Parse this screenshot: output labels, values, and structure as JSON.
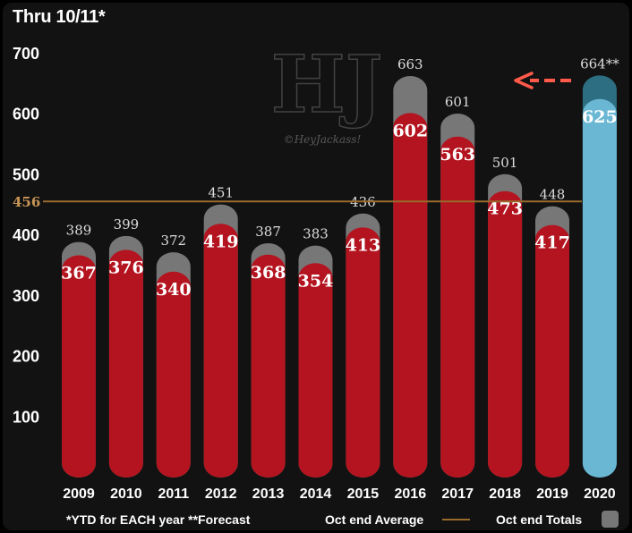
{
  "title": "Thru 10/11*",
  "watermark": {
    "logo": "HJ",
    "text": "©HeyJackass!"
  },
  "colors": {
    "ytd_bar": "#b3141f",
    "total_bar": "#777777",
    "forecast_ytd": "#6ab7d4",
    "forecast_total": "#2e6e82",
    "average_line": "#9a6a2c",
    "average_label": "#c89556",
    "arrow": "#ff5a4a"
  },
  "footer": {
    "note": "*YTD for EACH year **Forecast",
    "average_legend": "Oct end Average",
    "totals_legend": "Oct end Totals"
  },
  "chart_data": {
    "type": "bar",
    "title": "Thru 10/11*",
    "categories": [
      "2009",
      "2010",
      "2011",
      "2012",
      "2013",
      "2014",
      "2015",
      "2016",
      "2017",
      "2018",
      "2019",
      "2020"
    ],
    "series": [
      {
        "name": "Oct end Totals",
        "values": [
          389,
          399,
          372,
          451,
          387,
          383,
          436,
          663,
          601,
          501,
          448,
          664
        ],
        "labels": [
          "389",
          "399",
          "372",
          "451",
          "387",
          "383",
          "436",
          "663",
          "601",
          "501",
          "448",
          "664**"
        ]
      },
      {
        "name": "*YTD for EACH year",
        "values": [
          367,
          376,
          340,
          419,
          368,
          354,
          413,
          602,
          563,
          473,
          417,
          625
        ],
        "labels": [
          "367",
          "376",
          "340",
          "419",
          "368",
          "354",
          "413",
          "602",
          "563",
          "473",
          "417",
          "625"
        ]
      }
    ],
    "forecast_category": "2020",
    "reference_line": {
      "name": "Oct end Average",
      "value": 456,
      "label": "456"
    },
    "yticks": [
      100,
      200,
      300,
      400,
      500,
      600,
      700
    ],
    "ylim": [
      0,
      700
    ],
    "xlabel": "",
    "ylabel": "",
    "grid": false,
    "legend_position": "bottom"
  }
}
